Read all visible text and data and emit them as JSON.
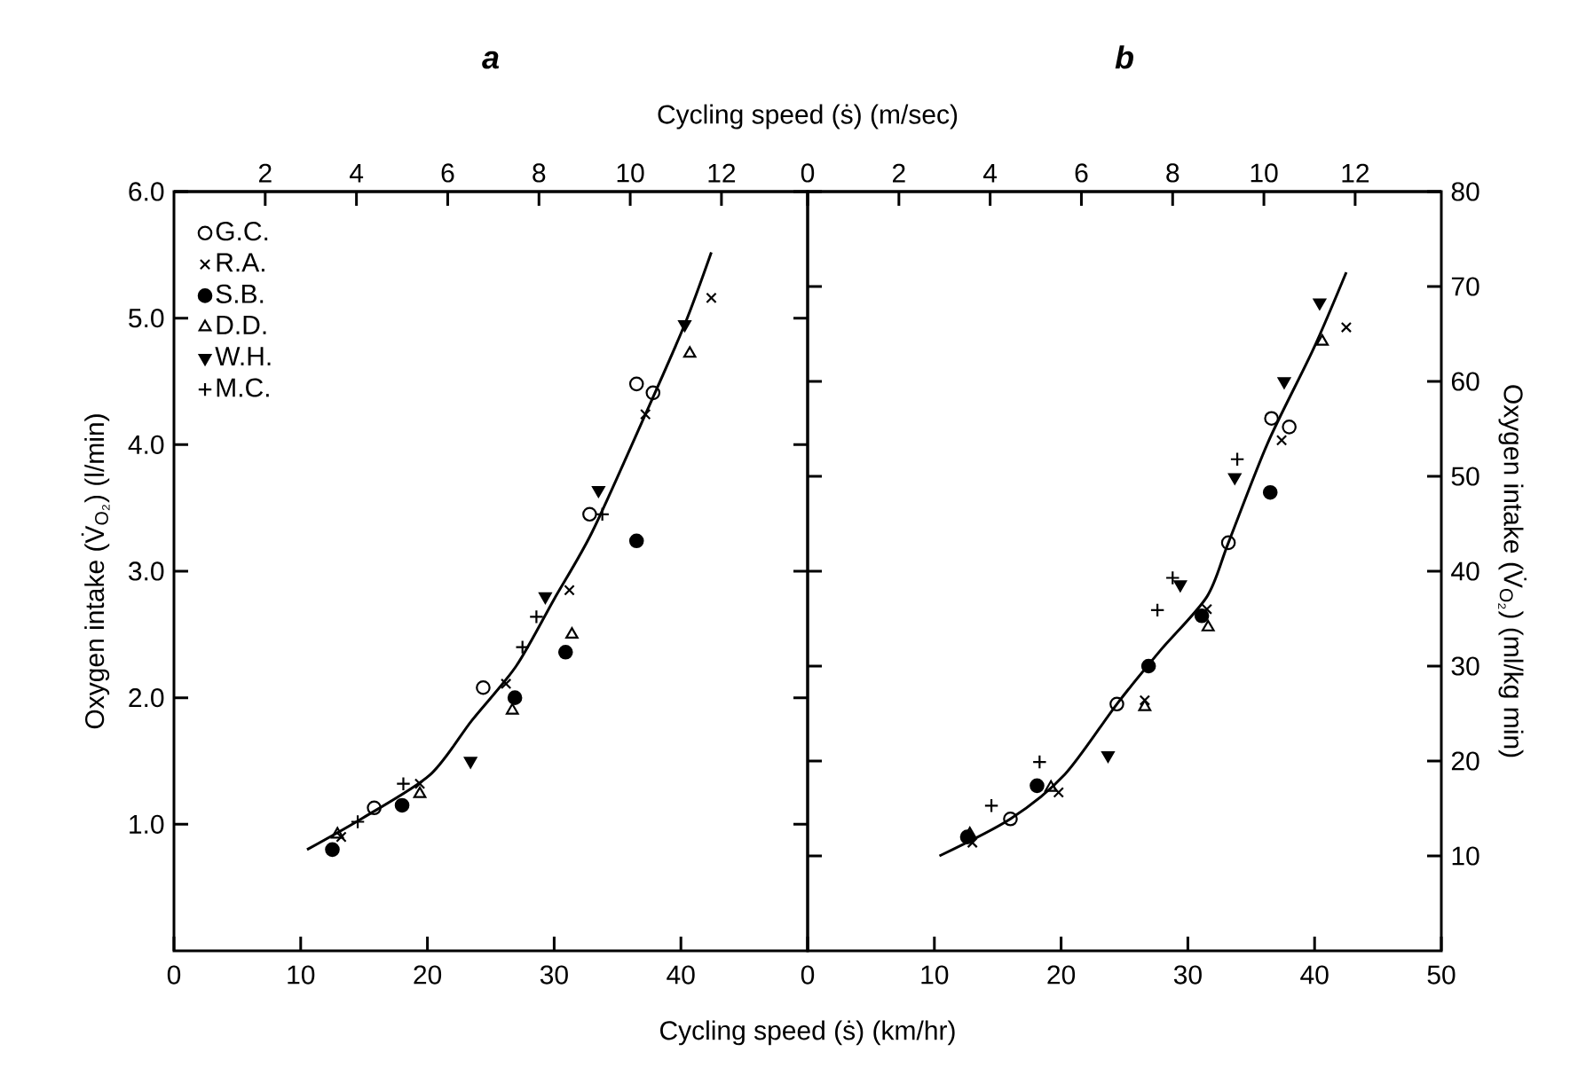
{
  "chart_data": [
    {
      "type": "scatter",
      "title": "a",
      "xlabel": "Cycling speed (ṡ) (km/hr)",
      "x2label": "Cycling speed (ṡ) (m/sec)",
      "ylabel": "Oxygen intake (V̇$_{O₂}$) (l/min)",
      "xlim": [
        0,
        50
      ],
      "xticks": [
        0,
        10,
        20,
        30,
        40
      ],
      "x2lim": [
        0,
        13.889
      ],
      "x2ticks": [
        2,
        4,
        6,
        8,
        10,
        12
      ],
      "ylim": [
        0,
        6
      ],
      "yticks": [
        {
          "value": 1,
          "label": "1.0"
        },
        {
          "value": 2,
          "label": "2.0"
        },
        {
          "value": 3,
          "label": "3.0"
        },
        {
          "value": 4,
          "label": "4.0"
        },
        {
          "value": 5,
          "label": "5.0"
        },
        {
          "value": 6,
          "label": "6.0"
        }
      ],
      "legend": "top left",
      "grid": false,
      "series": [
        {
          "name": "G.C.",
          "color": "#000000",
          "marker": "circle_open",
          "x": [
            15.8,
            24.4,
            32.8,
            36.5,
            37.8
          ],
          "values": [
            1.13,
            2.08,
            3.45,
            4.48,
            4.41
          ]
        },
        {
          "name": "R.A.",
          "color": "#000000",
          "marker": "cross",
          "x": [
            13.2,
            19.4,
            26.2,
            31.2,
            37.2,
            42.4
          ],
          "values": [
            0.9,
            1.32,
            2.11,
            2.85,
            4.24,
            5.16
          ]
        },
        {
          "name": "S.B.",
          "color": "#000000",
          "marker": "circle",
          "x": [
            12.5,
            18.0,
            26.9,
            30.9,
            36.5
          ],
          "values": [
            0.8,
            1.15,
            2.0,
            2.36,
            3.24
          ]
        },
        {
          "name": "D.D.",
          "color": "#000000",
          "marker": "triangle_open",
          "x": [
            12.9,
            19.4,
            26.7,
            31.4,
            40.7
          ],
          "values": [
            0.92,
            1.24,
            1.9,
            2.5,
            4.72
          ]
        },
        {
          "name": "W.H.",
          "color": "#000000",
          "marker": "triangle_down",
          "x": [
            23.4,
            29.3,
            33.5,
            40.3
          ],
          "values": [
            1.5,
            2.8,
            3.64,
            4.95
          ]
        },
        {
          "name": "M.C.",
          "color": "#000000",
          "marker": "plus",
          "x": [
            14.5,
            18.1,
            27.5,
            28.6,
            33.8
          ],
          "values": [
            1.02,
            1.32,
            2.4,
            2.64,
            3.45
          ]
        },
        {
          "type": "line",
          "color": "#000000",
          "marker": "none",
          "x": [
            10.5,
            14.9,
            20.2,
            23.5,
            27.0,
            30.0,
            33.0,
            37.2,
            40.3,
            42.4
          ],
          "values": [
            0.8,
            1.05,
            1.39,
            1.82,
            2.25,
            2.78,
            3.31,
            4.24,
            4.95,
            5.52
          ]
        }
      ]
    },
    {
      "type": "scatter",
      "title": "b",
      "ylabel": "Oxygen intake (V̇$_{O₂}$) (ml/kg min)",
      "xlim": [
        0,
        50
      ],
      "xticks": [
        0,
        10,
        20,
        30,
        40,
        50
      ],
      "x2lim": [
        0,
        13.889
      ],
      "x2ticks": [
        0,
        2,
        4,
        6,
        8,
        10,
        12
      ],
      "ylim": [
        0,
        80
      ],
      "yticks": [
        10,
        20,
        30,
        40,
        50,
        60,
        70,
        80
      ],
      "grid": false,
      "series": [
        {
          "color": "#000000",
          "marker": "circle_open",
          "x": [
            16.0,
            24.4,
            33.2,
            36.6,
            38.0
          ],
          "values": [
            13.9,
            26.0,
            43.0,
            56.1,
            55.2
          ]
        },
        {
          "color": "#000000",
          "marker": "cross",
          "x": [
            13.0,
            19.8,
            26.6,
            31.5,
            37.4,
            42.5
          ],
          "values": [
            11.4,
            16.7,
            26.4,
            36.0,
            53.8,
            65.7
          ]
        },
        {
          "color": "#000000",
          "marker": "circle",
          "x": [
            12.6,
            18.1,
            26.9,
            31.1,
            36.5
          ],
          "values": [
            12.0,
            17.4,
            30.0,
            35.3,
            48.3
          ]
        },
        {
          "color": "#000000",
          "marker": "triangle_open",
          "x": [
            12.8,
            19.2,
            26.6,
            31.6,
            40.6
          ],
          "values": [
            12.3,
            17.2,
            25.7,
            34.1,
            64.2
          ]
        },
        {
          "color": "#000000",
          "marker": "triangle_down",
          "x": [
            23.7,
            29.4,
            33.7,
            37.6,
            40.4
          ],
          "values": [
            20.6,
            38.6,
            49.9,
            60.0,
            68.3
          ]
        },
        {
          "color": "#000000",
          "marker": "plus",
          "x": [
            14.5,
            18.3,
            27.6,
            28.8,
            33.9
          ],
          "values": [
            15.3,
            19.9,
            35.9,
            39.3,
            51.8
          ]
        },
        {
          "type": "line",
          "color": "#000000",
          "marker": "none",
          "x": [
            10.4,
            16.0,
            20.3,
            24.4,
            27.8,
            31.5,
            33.2,
            36.3,
            39.9,
            42.5
          ],
          "values": [
            10.0,
            13.9,
            18.6,
            26.0,
            31.6,
            37.3,
            43.0,
            53.5,
            63.4,
            71.5
          ]
        }
      ]
    }
  ]
}
